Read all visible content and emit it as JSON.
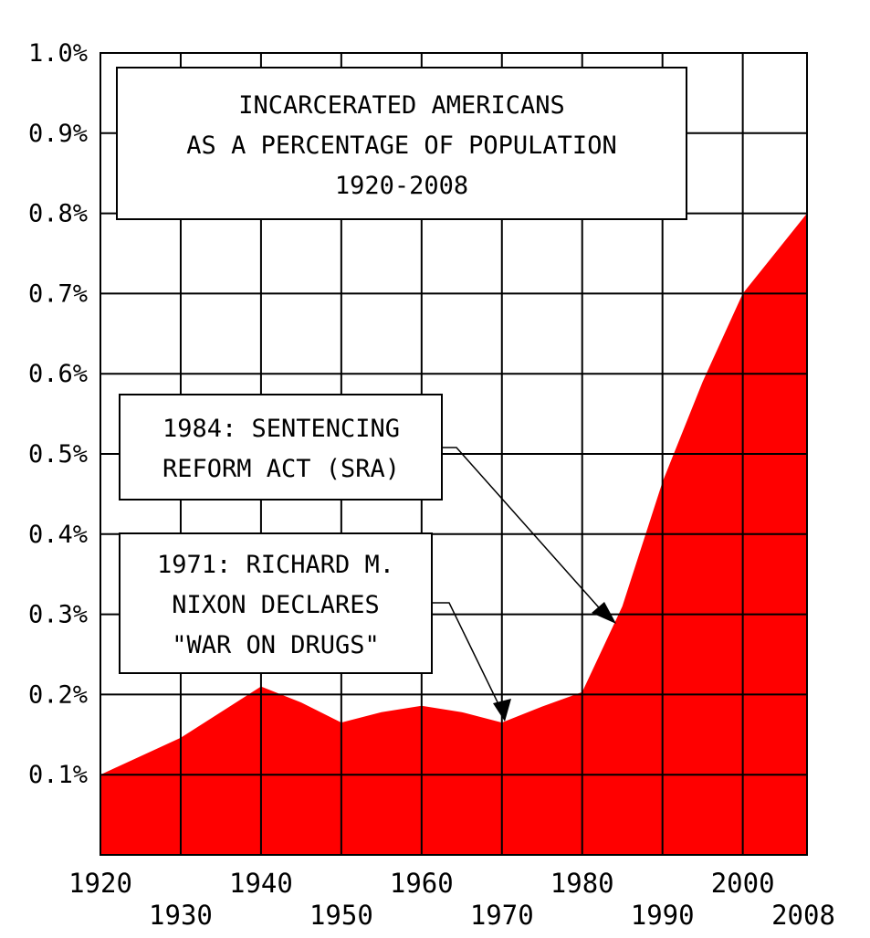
{
  "chart_data": {
    "type": "area",
    "title_lines": [
      "INCARCERATED AMERICANS",
      "AS A PERCENTAGE OF POPULATION",
      "1920-2008"
    ],
    "x": [
      1920,
      1930,
      1940,
      1945,
      1950,
      1955,
      1960,
      1965,
      1970,
      1975,
      1980,
      1985,
      1990,
      1995,
      2000,
      2008
    ],
    "series": [
      {
        "values": [
          0.1,
          0.146,
          0.21,
          0.19,
          0.165,
          0.178,
          0.186,
          0.178,
          0.165,
          0.185,
          0.203,
          0.31,
          0.465,
          0.59,
          0.7,
          0.8
        ]
      }
    ],
    "xlim": [
      1920,
      2008
    ],
    "ylim": [
      0,
      1.0
    ],
    "x_ticks_upper": [
      "1920",
      "1940",
      "1960",
      "1980",
      "2000"
    ],
    "x_ticks_lower": [
      "1930",
      "1950",
      "1970",
      "1990",
      "2008"
    ],
    "y_ticks": [
      {
        "value": 0.1,
        "label": "0.1%"
      },
      {
        "value": 0.2,
        "label": "0.2%"
      },
      {
        "value": 0.3,
        "label": "0.3%"
      },
      {
        "value": 0.4,
        "label": "0.4%"
      },
      {
        "value": 0.5,
        "label": "0.5%"
      },
      {
        "value": 0.6,
        "label": "0.6%"
      },
      {
        "value": 0.7,
        "label": "0.7%"
      },
      {
        "value": 0.8,
        "label": "0.8%"
      },
      {
        "value": 0.9,
        "label": "0.9%"
      },
      {
        "value": 1.0,
        "label": "1.0%"
      }
    ],
    "grid": true,
    "annotations": [
      {
        "lines": [
          "1984: SENTENCING",
          "REFORM ACT (SRA)"
        ],
        "x": 1984,
        "y": 0.295
      },
      {
        "lines": [
          "1971: RICHARD M.",
          "NIXON DECLARES",
          "\"WAR ON DRUGS\""
        ],
        "x": 1971,
        "y": 0.165
      }
    ],
    "colors": {
      "fill": "#ff0000",
      "grid": "#000000",
      "background": "#ffffff"
    }
  }
}
